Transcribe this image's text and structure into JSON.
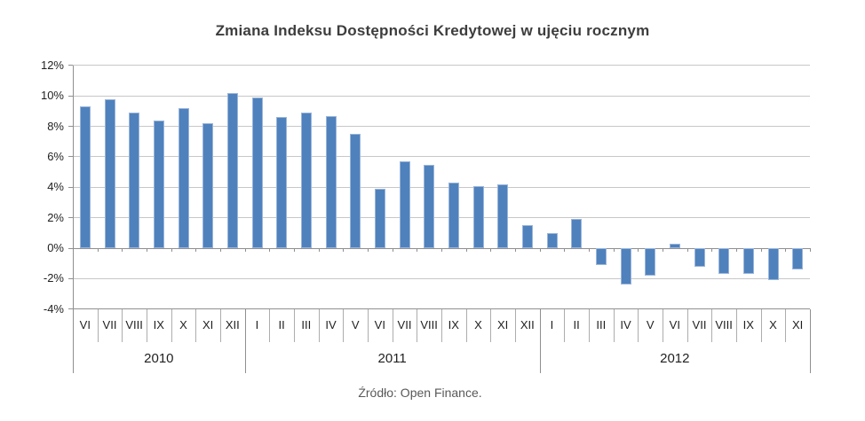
{
  "chart_data": {
    "type": "bar",
    "title": "Zmiana Indeksu Dostępności Kredytowej w ujęciu rocznym",
    "groups": [
      {
        "year": "2010",
        "months": [
          "VI",
          "VII",
          "VIII",
          "IX",
          "X",
          "XI",
          "XII"
        ],
        "values": [
          9.3,
          9.8,
          8.9,
          8.4,
          9.2,
          8.2,
          10.2
        ]
      },
      {
        "year": "2011",
        "months": [
          "I",
          "II",
          "III",
          "IV",
          "V",
          "VI",
          "VII",
          "VIII",
          "IX",
          "X",
          "XI",
          "XII"
        ],
        "values": [
          9.9,
          8.6,
          8.9,
          8.7,
          7.5,
          3.9,
          5.7,
          5.5,
          4.3,
          4.1,
          4.2,
          1.5
        ]
      },
      {
        "year": "2012",
        "months": [
          "I",
          "II",
          "III",
          "IV",
          "V",
          "VI",
          "VII",
          "VIII",
          "IX",
          "X",
          "XI"
        ],
        "values": [
          1.0,
          1.9,
          -1.1,
          -2.4,
          -1.8,
          0.3,
          -1.2,
          -1.7,
          -1.7,
          -2.1,
          -1.4
        ]
      }
    ],
    "ylim": [
      -4,
      12
    ],
    "ytick_step": 2,
    "ytick_labels": [
      "12%",
      "10%",
      "8%",
      "6%",
      "4%",
      "2%",
      "0%",
      "-2%",
      "-4%"
    ],
    "grid": true,
    "legend": "none",
    "bar_color": "#4F81BD",
    "bar_border_color": "#9ab5d9",
    "gridline_color": "#c7c7c7",
    "axis_color": "#8f8f8f"
  },
  "source": {
    "text": "Źródło: Open Finance."
  }
}
